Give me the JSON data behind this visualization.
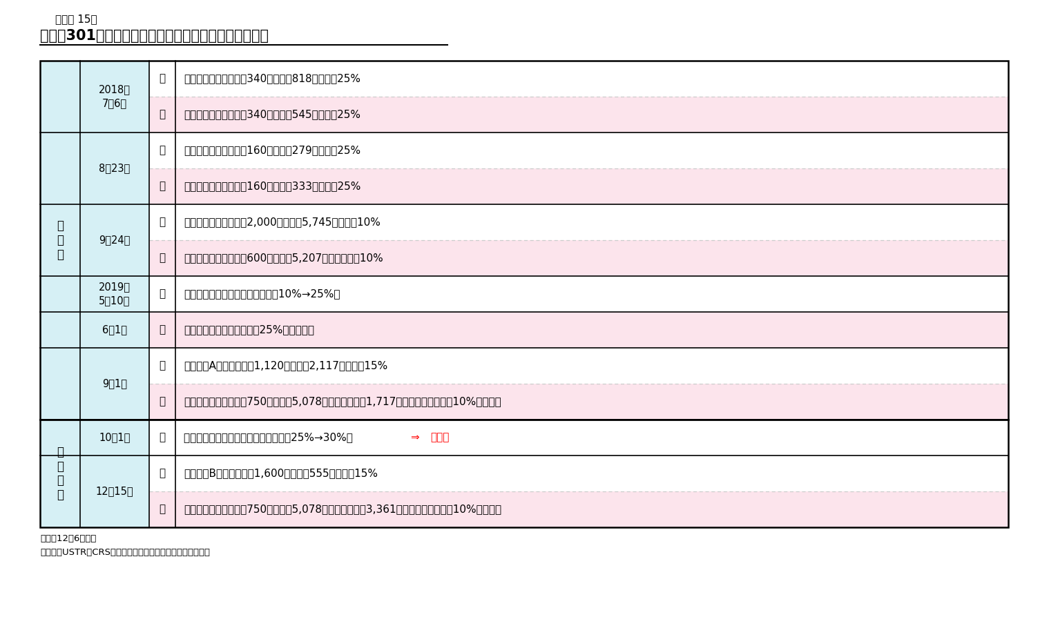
{
  "figure_label": "（図表 15）",
  "title": "通商法301条に基づく米国の対中関税と中国の制裁措置",
  "notes": [
    "（注）12月6日時点",
    "（資料）USTR、CRS、各種報道よりニッセイ基礎研究所作成"
  ],
  "colors": {
    "us_row_bg": "#ffffff",
    "cn_row_bg": "#fce4ec",
    "border": "#000000",
    "dashed_border": "#cccccc",
    "light_blue_col": "#d6f0f5",
    "red_text": "#ff0000"
  },
  "rows": [
    {
      "group": "既実施",
      "date": "2018年\n7月6日",
      "country": "米",
      "content": "【第１弾】対中輸入額340億ドル（818品目）に25%",
      "cn_bg": false,
      "dashed_top": false
    },
    {
      "group": "既実施",
      "date": "2018年\n7月6日",
      "country": "中",
      "content": "【第１弾】対米輸入額340億ドル（545品目）に25%",
      "cn_bg": true,
      "dashed_top": true
    },
    {
      "group": "既実施",
      "date": "8月23日",
      "country": "米",
      "content": "【第２弾】対中輸入額160億ドル（279品目）に25%",
      "cn_bg": false,
      "dashed_top": false
    },
    {
      "group": "既実施",
      "date": "8月23日",
      "country": "中",
      "content": "【第２弾】対米輸入額160億ドル（333品目）に25%",
      "cn_bg": true,
      "dashed_top": true
    },
    {
      "group": "既実施",
      "date": "9月24日",
      "country": "米",
      "content": "【第３弾】対中輸入額2,000億ドル（5,745品目）に10%",
      "cn_bg": false,
      "dashed_top": false
    },
    {
      "group": "既実施",
      "date": "9月24日",
      "country": "中",
      "content": "【第３弾】対米輸入額600億ドル（5,207品目）に５～10%",
      "cn_bg": true,
      "dashed_top": true
    },
    {
      "group": "既実施",
      "date": "2019年\n5月10日",
      "country": "米",
      "content": "【第３弾】の関税率を引き上げ（10%→25%）",
      "cn_bg": false,
      "dashed_top": false
    },
    {
      "group": "既実施",
      "date": "6月1日",
      "country": "中",
      "content": "【第３弾】の関税率を最大25%に引き上げ",
      "cn_bg": true,
      "dashed_top": false
    },
    {
      "group": "既実施",
      "date": "9月1日",
      "country": "米",
      "content": "【第４弾A】対中輸入額1,120億ドル（2,117品目）に15%",
      "cn_bg": false,
      "dashed_top": false
    },
    {
      "group": "既実施",
      "date": "9月1日",
      "country": "中",
      "content": "【第４弾】対米輸入額750億ドル（5,078品目）のうち、1,717品目の関税率を５～10%引き上げ",
      "cn_bg": true,
      "dashed_top": true
    },
    {
      "group": "実施予定",
      "date": "10月1日",
      "country": "米",
      "content": "【第１～３弾】の関税率を引き上げ（25%→30%）  ⇒  先送り",
      "cn_bg": false,
      "dashed_top": false,
      "red_part": "先送り",
      "red_arrow": true
    },
    {
      "group": "実施予定",
      "date": "12月15日",
      "country": "米",
      "content": "【第４弾B】対中輸入額1,600億ドル（555品目）に15%",
      "cn_bg": false,
      "dashed_top": false
    },
    {
      "group": "実施予定",
      "date": "12月15日",
      "country": "中",
      "content": "【第４弾】対米輸入額750億ドル（5,078品目）のうち、3,361品目の関税率を５～10%引き上げ",
      "cn_bg": true,
      "dashed_top": true
    }
  ],
  "group_spans": {
    "既実施": [
      0,
      9
    ],
    "実施予定": [
      10,
      12
    ]
  },
  "date_spans": [
    [
      0,
      1,
      "2018年\n7月6日"
    ],
    [
      2,
      3,
      "8月23日"
    ],
    [
      4,
      5,
      "9月24日"
    ],
    [
      6,
      6,
      "2019年\n5月10日"
    ],
    [
      7,
      7,
      "6月1日"
    ],
    [
      8,
      9,
      "9月1日"
    ],
    [
      10,
      10,
      "10月1日"
    ],
    [
      11,
      12,
      "12月15日"
    ]
  ]
}
